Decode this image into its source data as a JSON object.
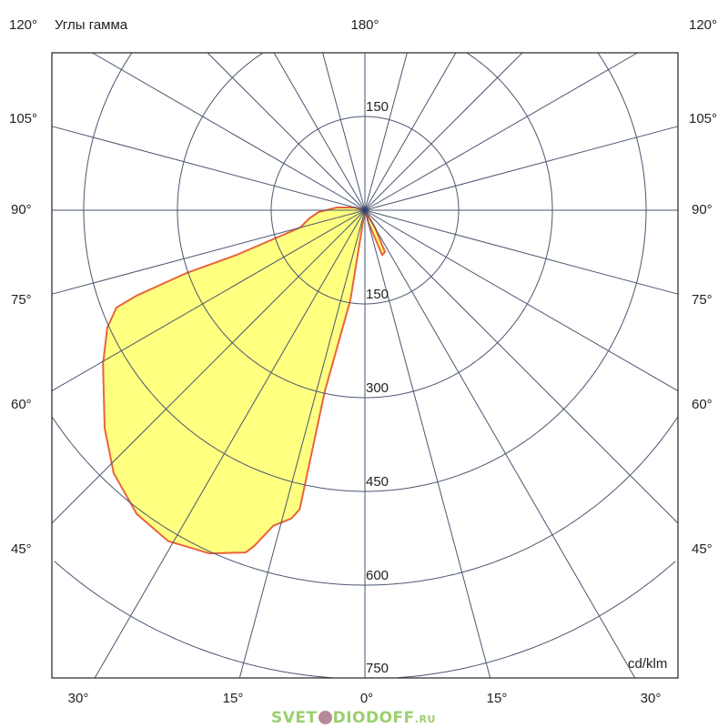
{
  "chart_data": {
    "type": "polar",
    "title": "Углы гамма",
    "unit": "cd/klm",
    "radial_ticks": [
      150,
      300,
      450,
      600,
      750
    ],
    "radial_max": 750,
    "angle_step_deg": 15,
    "angle_labels": {
      "top": "180°",
      "left": [
        "120°",
        "105°",
        "90°",
        "75°",
        "60°",
        "45°"
      ],
      "right": [
        "120°",
        "105°",
        "90°",
        "75°",
        "60°",
        "45°"
      ],
      "bottom": [
        "30°",
        "15°",
        "0°",
        "15°",
        "30°"
      ]
    },
    "grid": true,
    "colors": {
      "fill": "#ffff80",
      "outline": "#e8643c",
      "grid": "#4a5670"
    },
    "series": [
      {
        "points": [
          [
            0,
            0
          ],
          [
            9.2,
            146
          ],
          [
            12.5,
            297
          ],
          [
            12.3,
            490
          ],
          [
            13.4,
            507
          ],
          [
            16.2,
            526
          ],
          [
            18.2,
            565
          ],
          [
            19.2,
            580
          ],
          [
            24.4,
            603
          ],
          [
            30.7,
            616
          ],
          [
            36.9,
            608
          ],
          [
            43.7,
            582
          ],
          [
            50.1,
            543
          ],
          [
            59.6,
            486
          ],
          [
            65.5,
            453
          ],
          [
            68.6,
            427
          ],
          [
            69.5,
            390
          ],
          [
            70.6,
            303
          ],
          [
            70.8,
            217
          ],
          [
            75,
            107
          ],
          [
            81.6,
            90
          ],
          [
            87.8,
            74
          ],
          [
            95.5,
            45
          ],
          [
            105,
            17
          ],
          [
            0,
            0
          ],
          [
            -16,
            21
          ],
          [
            -21.2,
            77
          ],
          [
            -25.6,
            74
          ],
          [
            -30,
            32
          ],
          [
            0,
            0
          ]
        ]
      }
    ]
  },
  "watermark": {
    "main": "SVET",
    "main2": "DIODOFF",
    "suffix": ".RU"
  }
}
